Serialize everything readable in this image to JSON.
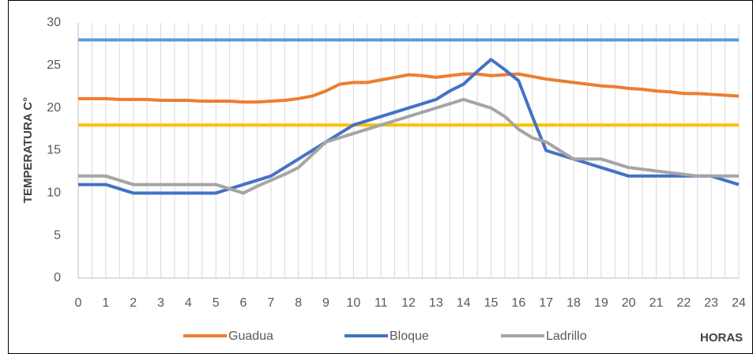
{
  "chart_data": {
    "type": "line",
    "y_label": "TEMPERATURA C°",
    "x_label": "HORAS",
    "x": [
      0,
      0.5,
      1,
      1.5,
      2,
      2.5,
      3,
      3.5,
      4,
      4.5,
      5,
      5.5,
      6,
      6.5,
      7,
      7.5,
      8,
      8.5,
      9,
      9.5,
      10,
      10.5,
      11,
      11.5,
      12,
      12.5,
      13,
      13.5,
      14,
      14.5,
      15,
      15.5,
      16,
      16.5,
      17,
      17.5,
      18,
      18.5,
      19,
      19.5,
      20,
      20.5,
      21,
      21.5,
      22,
      22.5,
      23,
      23.5,
      24
    ],
    "series": [
      {
        "name": "Guadua",
        "color": "#ed7d31",
        "values": [
          21.1,
          21.1,
          21.1,
          21.0,
          21.0,
          21.0,
          20.9,
          20.9,
          20.9,
          20.8,
          20.8,
          20.8,
          20.7,
          20.7,
          20.8,
          20.9,
          21.1,
          21.4,
          22.0,
          22.8,
          23.0,
          23.0,
          23.3,
          23.6,
          23.9,
          23.8,
          23.6,
          23.8,
          24.0,
          24.0,
          23.8,
          23.9,
          24.0,
          23.7,
          23.4,
          23.2,
          23.0,
          22.8,
          22.6,
          22.5,
          22.3,
          22.2,
          22.0,
          21.9,
          21.7,
          21.7,
          21.6,
          21.5,
          21.4
        ]
      },
      {
        "name": "Bloque",
        "color": "#4472c4",
        "values": [
          11,
          11,
          11,
          10.5,
          10,
          10,
          10,
          10,
          10,
          10,
          10,
          10.5,
          11,
          11.5,
          12,
          13,
          14,
          15,
          16,
          17,
          18,
          18.5,
          19,
          19.5,
          20,
          20.5,
          21,
          22,
          22.8,
          24.3,
          25.7,
          24.5,
          23.2,
          19,
          15,
          14.5,
          14,
          13.5,
          13,
          12.5,
          12,
          12,
          12,
          12,
          12,
          12,
          12,
          11.5,
          11
        ]
      },
      {
        "name": "Ladrillo",
        "color": "#a5a5a5",
        "values": [
          12,
          12,
          12,
          11.5,
          11,
          11,
          11,
          11,
          11,
          11,
          11,
          10.5,
          10,
          10.8,
          11.5,
          12.2,
          13,
          14.5,
          16,
          16.5,
          17,
          17.5,
          18,
          18.5,
          19,
          19.5,
          20,
          20.5,
          21,
          20.5,
          20,
          19,
          17.5,
          16.5,
          16,
          15,
          14,
          14,
          14,
          13.5,
          13,
          12.8,
          12.6,
          12.4,
          12.2,
          12,
          12,
          12,
          12
        ]
      }
    ],
    "reference_lines": [
      {
        "value": 28,
        "color": "#5b9bd5"
      },
      {
        "value": 18,
        "color": "#ffc000"
      }
    ],
    "xlim": [
      0,
      24
    ],
    "xticks": [
      0,
      1,
      2,
      3,
      4,
      5,
      6,
      7,
      8,
      9,
      10,
      11,
      12,
      13,
      14,
      15,
      16,
      17,
      18,
      19,
      20,
      21,
      22,
      23,
      24
    ],
    "ylim": [
      0,
      30
    ],
    "yticks": [
      0,
      5,
      10,
      15,
      20,
      25,
      30
    ],
    "grid": "x",
    "legend": "bottom"
  }
}
